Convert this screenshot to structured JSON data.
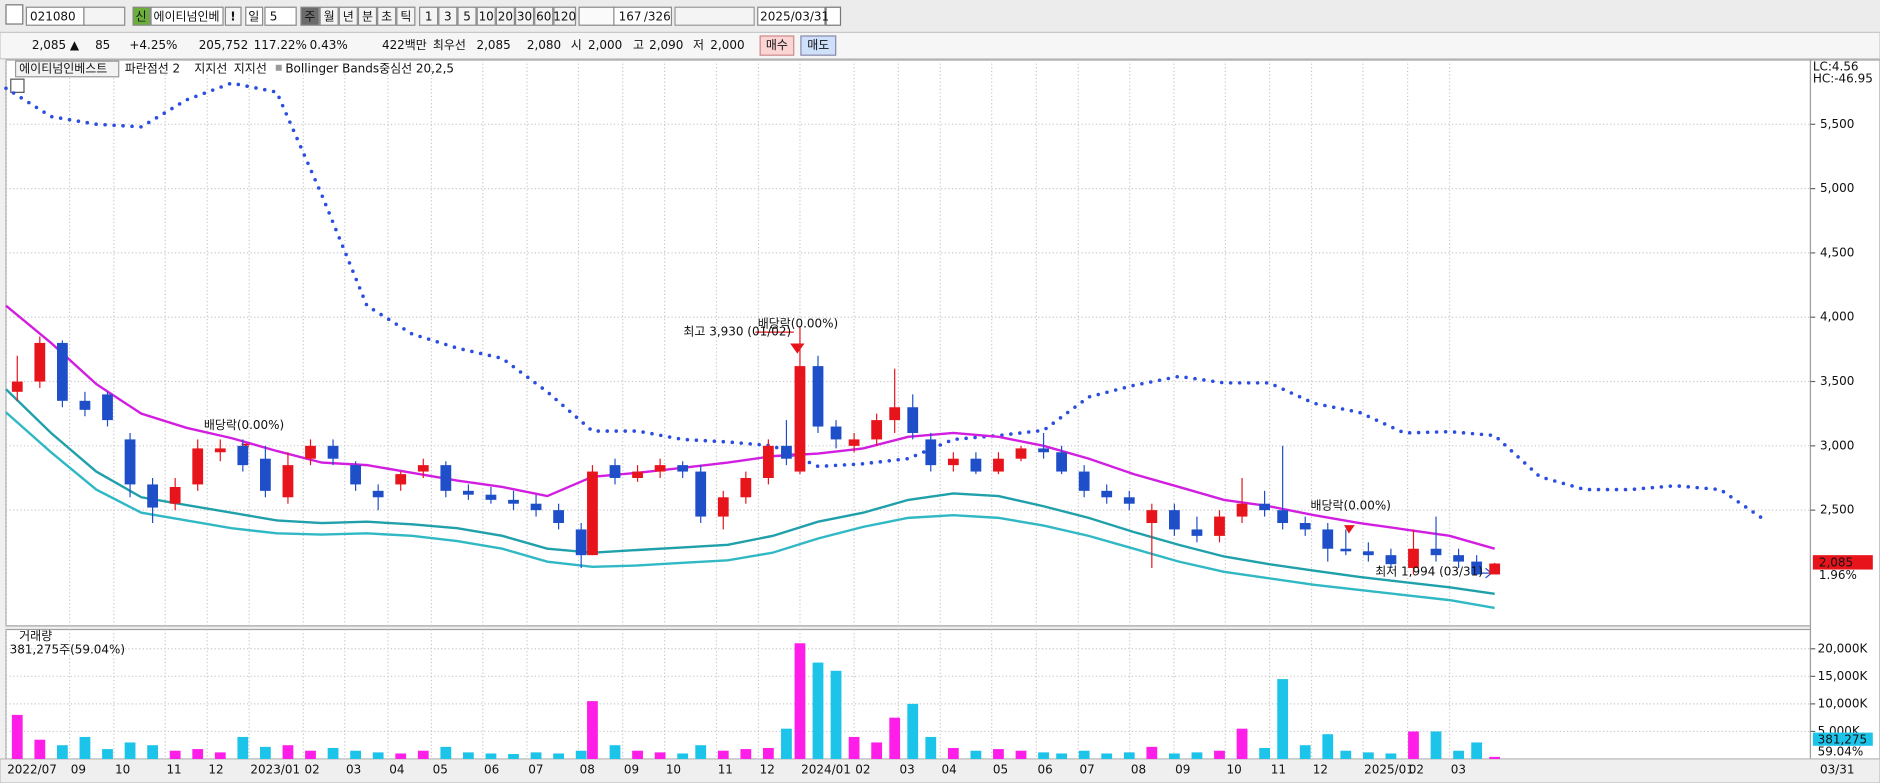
{
  "toolbar": {
    "code": "021080",
    "badge": "신",
    "name": "에이티넘인베",
    "alert": "!",
    "period": "일",
    "period_count": "5",
    "units": [
      "주",
      "월",
      "년",
      "분",
      "초",
      "틱"
    ],
    "intervals": [
      "1",
      "3",
      "5",
      "10",
      "20",
      "30",
      "60",
      "120"
    ],
    "count": "167",
    "total": "/326",
    "date": "2025/03/31"
  },
  "quote": {
    "price": "2,085 ▲",
    "change": "85",
    "change_pct": "+4.25%",
    "volume": "205,752",
    "volume_ratio": "117.22%",
    "turnover": "0.43%",
    "amount": "422백만",
    "best_label": "최우선",
    "ask": "2,085",
    "bid": "2,080",
    "open_label": "시",
    "open": "2,000",
    "high_label": "고",
    "high": "2,090",
    "low_label": "저",
    "low": "2,000",
    "buy": "매수",
    "sell": "매도"
  },
  "chart_data": [
    {
      "type": "candlestick",
      "title": "에이티넘인베스트",
      "up_color": "#e8141c",
      "down_color": "#1f4fc8",
      "candles": {
        "x": [
          0.25,
          0.75,
          1.25,
          1.75,
          2.25,
          2.75,
          3.25,
          3.75,
          4.25,
          4.75,
          5.25,
          5.75,
          6.25,
          6.75,
          7.25,
          7.75,
          8.25,
          8.75,
          9.25,
          9.75,
          10.25,
          10.75,
          11.25,
          11.75,
          12.25,
          12.75,
          13.0,
          13.5,
          14.0,
          14.5,
          15.0,
          15.4,
          15.9,
          16.4,
          16.9,
          17.3,
          17.6,
          18.0,
          18.4,
          18.8,
          19.3,
          19.7,
          20.1,
          20.5,
          21.0,
          21.5,
          22.0,
          22.5,
          23.0,
          23.4,
          23.9,
          24.4,
          24.9,
          25.4,
          25.9,
          26.4,
          26.9,
          27.4,
          27.9,
          28.3,
          28.8,
          29.3,
          29.7,
          30.2,
          30.7,
          31.2,
          31.7,
          32.2,
          32.6,
          33.0
        ],
        "open": [
          3420,
          3500,
          3800,
          3350,
          3400,
          3050,
          2700,
          2550,
          2700,
          2950,
          3000,
          2900,
          2600,
          2900,
          3000,
          2850,
          2650,
          2700,
          2800,
          2850,
          2650,
          2620,
          2580,
          2550,
          2500,
          2350,
          2150,
          2850,
          2750,
          2800,
          2850,
          2800,
          2450,
          2600,
          2750,
          3000,
          2800,
          3620,
          3150,
          3000,
          3050,
          3200,
          3300,
          3050,
          2850,
          2900,
          2800,
          2900,
          2980,
          2950,
          2800,
          2650,
          2600,
          2400,
          2500,
          2350,
          2300,
          2450,
          2550,
          2500,
          2400,
          2350,
          2200,
          2180,
          2150,
          2050,
          2200,
          2150,
          2100,
          2000
        ],
        "high": [
          3700,
          3850,
          3820,
          3420,
          3420,
          3100,
          2750,
          2750,
          3050,
          3050,
          3050,
          3000,
          2950,
          3050,
          3050,
          2880,
          2700,
          2800,
          2900,
          2880,
          2700,
          2680,
          2650,
          2620,
          2550,
          2400,
          2850,
          2900,
          2850,
          2900,
          2880,
          2850,
          2650,
          2800,
          3050,
          3200,
          3930,
          3700,
          3200,
          3100,
          3250,
          3600,
          3400,
          3100,
          2950,
          2950,
          2950,
          3000,
          3100,
          3000,
          2850,
          2700,
          2650,
          2550,
          2550,
          2450,
          2500,
          2750,
          2650,
          3000,
          2450,
          2400,
          2350,
          2250,
          2200,
          2350,
          2450,
          2200,
          2150,
          2090
        ],
        "low": [
          3350,
          3450,
          3300,
          3230,
          3150,
          2600,
          2400,
          2500,
          2650,
          2880,
          2800,
          2600,
          2550,
          2850,
          2850,
          2650,
          2500,
          2650,
          2750,
          2600,
          2580,
          2550,
          2500,
          2450,
          2350,
          2050,
          2150,
          2700,
          2720,
          2750,
          2750,
          2400,
          2350,
          2550,
          2700,
          2850,
          2780,
          3100,
          2980,
          2950,
          3000,
          3100,
          3050,
          2800,
          2800,
          2780,
          2780,
          2880,
          2900,
          2780,
          2600,
          2550,
          2500,
          2050,
          2300,
          2250,
          2250,
          2400,
          2450,
          2350,
          2300,
          2100,
          2150,
          2100,
          2050,
          2000,
          2100,
          2050,
          1994,
          2000
        ],
        "close": [
          3500,
          3800,
          3350,
          3280,
          3200,
          2700,
          2520,
          2680,
          2980,
          2980,
          2850,
          2650,
          2850,
          3000,
          2900,
          2700,
          2600,
          2780,
          2850,
          2650,
          2620,
          2580,
          2550,
          2500,
          2400,
          2150,
          2800,
          2750,
          2800,
          2850,
          2800,
          2450,
          2600,
          2750,
          3000,
          2900,
          3620,
          3150,
          3050,
          3050,
          3200,
          3300,
          3100,
          2850,
          2900,
          2800,
          2900,
          2980,
          2950,
          2800,
          2650,
          2600,
          2550,
          2500,
          2350,
          2300,
          2450,
          2550,
          2500,
          2400,
          2350,
          2200,
          2180,
          2150,
          2080,
          2200,
          2150,
          2100,
          2000,
          2085
        ]
      },
      "series": [
        {
          "name": "파란점선 2",
          "color": "#2b4de0",
          "style": "dotted",
          "x": [
            0,
            1,
            2,
            3,
            4,
            5,
            6,
            7,
            8,
            9,
            10,
            11,
            12,
            13,
            14,
            15,
            16,
            17,
            18,
            19,
            20,
            21,
            22,
            23,
            24,
            25,
            26,
            27,
            28,
            29,
            30,
            31,
            32,
            33,
            34,
            35,
            36,
            37,
            38,
            39
          ],
          "values": [
            5780,
            5560,
            5500,
            5480,
            5690,
            5820,
            5750,
            4950,
            4090,
            3870,
            3760,
            3680,
            3420,
            3115,
            3115,
            3050,
            3030,
            3000,
            2840,
            2860,
            2900,
            3050,
            3080,
            3120,
            3380,
            3470,
            3540,
            3490,
            3490,
            3330,
            3260,
            3100,
            3110,
            3080,
            2760,
            2660,
            2660,
            2690,
            2660,
            2420
          ]
        },
        {
          "name": "지지선",
          "color": "#1fa0aa",
          "style": "solid",
          "x": [
            0,
            1,
            2,
            3,
            4,
            5,
            6,
            7,
            8,
            9,
            10,
            11,
            12,
            13,
            14,
            15,
            16,
            17,
            18,
            19,
            20,
            21,
            22,
            23,
            24,
            25,
            26,
            27,
            28,
            29,
            30,
            31,
            32,
            33
          ],
          "values": [
            3440,
            3100,
            2800,
            2600,
            2540,
            2480,
            2420,
            2400,
            2410,
            2390,
            2360,
            2300,
            2200,
            2170,
            2190,
            2210,
            2230,
            2300,
            2410,
            2480,
            2580,
            2630,
            2610,
            2530,
            2440,
            2330,
            2230,
            2140,
            2080,
            2030,
            1980,
            1940,
            1900,
            1850
          ]
        },
        {
          "name": "지지선",
          "color": "#30b8c4",
          "style": "solid",
          "x": [
            0,
            1,
            2,
            3,
            4,
            5,
            6,
            7,
            8,
            9,
            10,
            11,
            12,
            13,
            14,
            15,
            16,
            17,
            18,
            19,
            20,
            21,
            22,
            23,
            24,
            25,
            26,
            27,
            28,
            29,
            30,
            31,
            32,
            33
          ],
          "values": [
            3260,
            2950,
            2660,
            2480,
            2420,
            2360,
            2320,
            2310,
            2320,
            2300,
            2260,
            2200,
            2100,
            2060,
            2070,
            2090,
            2110,
            2170,
            2280,
            2370,
            2440,
            2460,
            2440,
            2380,
            2300,
            2200,
            2100,
            2020,
            1970,
            1920,
            1880,
            1840,
            1800,
            1740
          ]
        },
        {
          "name": "Bollinger Bands중심선 20,2,5",
          "color": "#d21ee0",
          "style": "solid",
          "x": [
            0,
            1,
            2,
            3,
            4,
            5,
            6,
            7,
            8,
            9,
            10,
            11,
            12,
            13,
            14,
            15,
            16,
            17,
            18,
            19,
            20,
            21,
            22,
            23,
            24,
            25,
            26,
            27,
            28,
            29,
            30,
            31,
            32,
            33
          ],
          "values": [
            4090,
            3800,
            3480,
            3250,
            3140,
            3060,
            2960,
            2870,
            2850,
            2790,
            2730,
            2680,
            2610,
            2760,
            2790,
            2830,
            2870,
            2920,
            2940,
            2980,
            3070,
            3100,
            3070,
            3000,
            2900,
            2780,
            2680,
            2580,
            2530,
            2460,
            2400,
            2350,
            2300,
            2200
          ]
        }
      ],
      "xlim": [
        0,
        40
      ],
      "xticks": [
        {
          "value": 0,
          "label": "2022/07"
        },
        {
          "value": 1.41,
          "label": "09"
        },
        {
          "value": 2.39,
          "label": "10"
        },
        {
          "value": 3.53,
          "label": "11"
        },
        {
          "value": 4.46,
          "label": "12"
        },
        {
          "value": 5.39,
          "label": "2023/01"
        },
        {
          "value": 6.59,
          "label": "02"
        },
        {
          "value": 7.51,
          "label": "03"
        },
        {
          "value": 8.47,
          "label": "04"
        },
        {
          "value": 9.43,
          "label": "05"
        },
        {
          "value": 10.57,
          "label": "06"
        },
        {
          "value": 11.55,
          "label": "07"
        },
        {
          "value": 12.69,
          "label": "08"
        },
        {
          "value": 13.67,
          "label": "09"
        },
        {
          "value": 14.6,
          "label": "10"
        },
        {
          "value": 15.75,
          "label": "11"
        },
        {
          "value": 16.68,
          "label": "12"
        },
        {
          "value": 17.6,
          "label": "2024/01"
        },
        {
          "value": 18.8,
          "label": "02"
        },
        {
          "value": 19.78,
          "label": "03"
        },
        {
          "value": 20.71,
          "label": "04"
        },
        {
          "value": 21.85,
          "label": "05"
        },
        {
          "value": 22.84,
          "label": "06"
        },
        {
          "value": 23.77,
          "label": "07"
        },
        {
          "value": 24.91,
          "label": "08"
        },
        {
          "value": 25.89,
          "label": "09"
        },
        {
          "value": 27.03,
          "label": "10"
        },
        {
          "value": 28.01,
          "label": "11"
        },
        {
          "value": 28.94,
          "label": "12"
        },
        {
          "value": 30.08,
          "label": "2025/01"
        },
        {
          "value": 31.07,
          "label": "02"
        },
        {
          "value": 32.0,
          "label": "03"
        }
      ],
      "ylim": [
        1600,
        6000
      ],
      "yticks": [
        {
          "value": 2500,
          "label": "2,500"
        },
        {
          "value": 3000,
          "label": "3,000"
        },
        {
          "value": 3500,
          "label": "3,500"
        },
        {
          "value": 4000,
          "label": "4,000"
        },
        {
          "value": 4500,
          "label": "4,500"
        },
        {
          "value": 5000,
          "label": "5,000"
        },
        {
          "value": 5500,
          "label": "5,500"
        }
      ],
      "grid": true,
      "annotations": [
        "배당락(0.00%)",
        "배당락(0.00%)",
        "최고 3,930 (01/02)",
        "배당락(0.00%)",
        "최저 1,994 (03/31)"
      ],
      "lc_label": "LC:4.56",
      "hc_label": "HC:-46.95",
      "last_price_label": "2,085",
      "last_change_label": "1.96%"
    },
    {
      "type": "bar",
      "title": "거래량",
      "subtitle": "381,275주(59.04%)",
      "up_color": "#ff1ee8",
      "down_color": "#1cc4ea",
      "x": [
        0.25,
        0.75,
        1.25,
        1.75,
        2.25,
        2.75,
        3.25,
        3.75,
        4.25,
        4.75,
        5.25,
        5.75,
        6.25,
        6.75,
        7.25,
        7.75,
        8.25,
        8.75,
        9.25,
        9.75,
        10.25,
        10.75,
        11.25,
        11.75,
        12.25,
        12.75,
        13.0,
        13.5,
        14.0,
        14.5,
        15.0,
        15.4,
        15.9,
        16.4,
        16.9,
        17.3,
        17.6,
        18.0,
        18.4,
        18.8,
        19.3,
        19.7,
        20.1,
        20.5,
        21.0,
        21.5,
        22.0,
        22.5,
        23.0,
        23.4,
        23.9,
        24.4,
        24.9,
        25.4,
        25.9,
        26.4,
        26.9,
        27.4,
        27.9,
        28.3,
        28.8,
        29.3,
        29.7,
        30.2,
        30.7,
        31.2,
        31.7,
        32.2,
        32.6,
        33.0
      ],
      "values": [
        8000,
        3500,
        2500,
        4000,
        1800,
        3000,
        2500,
        1500,
        1800,
        1200,
        4000,
        2200,
        2500,
        1500,
        2000,
        1500,
        1200,
        1000,
        1500,
        2200,
        1200,
        1000,
        900,
        1200,
        1000,
        1500,
        10500,
        2500,
        1500,
        1200,
        1000,
        2500,
        1500,
        1800,
        2000,
        5500,
        21000,
        17500,
        16000,
        4000,
        3000,
        7500,
        10000,
        4000,
        2000,
        1500,
        1800,
        1500,
        1200,
        1000,
        1500,
        1000,
        1200,
        2200,
        1000,
        1200,
        1500,
        5500,
        2000,
        14500,
        2500,
        4500,
        1500,
        1200,
        1000,
        5000,
        5000,
        1500,
        3000,
        381.275
      ],
      "ylim": [
        0,
        23500
      ],
      "yticks": [
        {
          "value": 5000,
          "label": "5,000K"
        },
        {
          "value": 10000,
          "label": "10,000K"
        },
        {
          "value": 15000,
          "label": "15,000K"
        },
        {
          "value": 20000,
          "label": "20,000K"
        }
      ],
      "last_volume_label": "381,275",
      "last_ratio_label": "59.04%",
      "end_date_label": "03/31"
    }
  ]
}
